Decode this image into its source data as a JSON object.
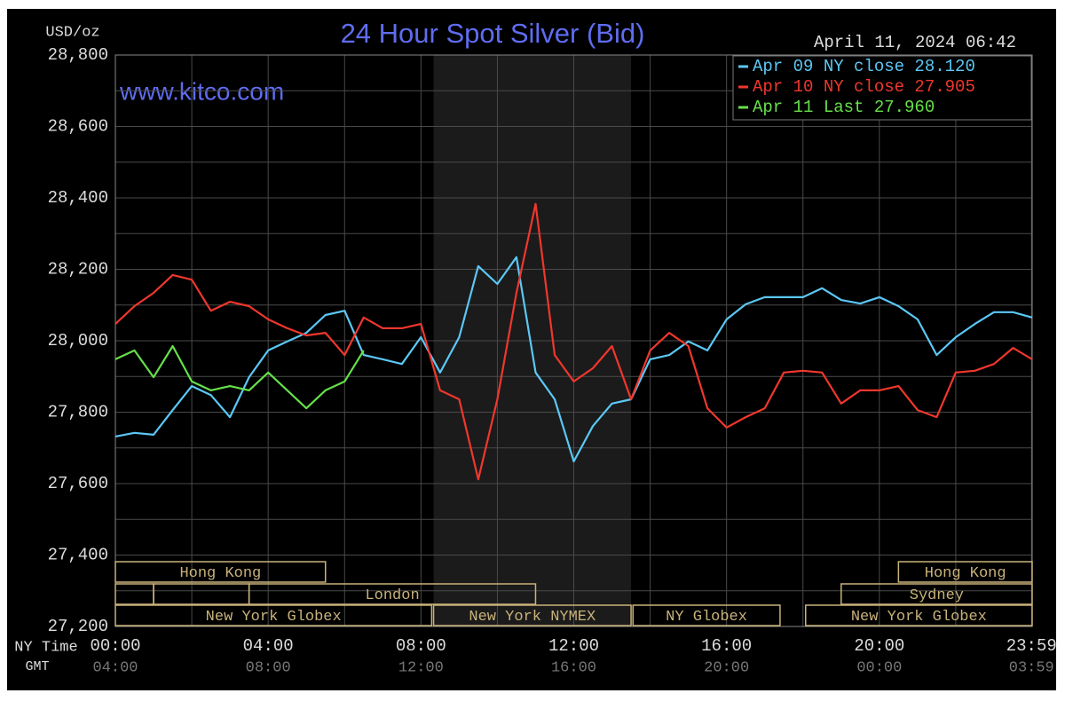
{
  "chart_data": {
    "type": "line",
    "title": "24 Hour Spot Silver (Bid)",
    "timestamp": "April 11, 2024 06:42",
    "watermark": "www.kitco.com",
    "y_unit_label": "USD/oz",
    "x_label": "NY Time",
    "x2_label": "GMT",
    "x": [
      0,
      0.5,
      1,
      1.5,
      2,
      2.5,
      3,
      3.5,
      4,
      4.5,
      5,
      5.5,
      6,
      6.5,
      7,
      7.5,
      8,
      8.5,
      9,
      9.5,
      10,
      10.5,
      11,
      11.5,
      12,
      12.5,
      13,
      13.5,
      14,
      14.5,
      15,
      15.5,
      16,
      16.5,
      17,
      17.5,
      18,
      18.5,
      19,
      19.5,
      20,
      20.5,
      21,
      21.5,
      22,
      22.5,
      23,
      23.5,
      24
    ],
    "xlim": [
      0,
      24
    ],
    "xticks": [
      {
        "value": 0,
        "label": "00:00"
      },
      {
        "value": 4,
        "label": "04:00"
      },
      {
        "value": 8,
        "label": "08:00"
      },
      {
        "value": 12,
        "label": "12:00"
      },
      {
        "value": 16,
        "label": "16:00"
      },
      {
        "value": 20,
        "label": "20:00"
      },
      {
        "value": 23.983,
        "label": "23:59"
      }
    ],
    "x2_tick_labels": [
      "04:00",
      "08:00",
      "12:00",
      "16:00",
      "20:00",
      "00:00",
      "03:59"
    ],
    "x_minor_ticks": [
      2,
      6,
      10,
      14,
      18,
      22
    ],
    "ylim": [
      27200,
      28800
    ],
    "yticks": [
      {
        "value": 27200,
        "label": "27,200"
      },
      {
        "value": 27400,
        "label": "27,400"
      },
      {
        "value": 27600,
        "label": "27,600"
      },
      {
        "value": 27800,
        "label": "27,800"
      },
      {
        "value": 28000,
        "label": "28,000"
      },
      {
        "value": 28200,
        "label": "28,200"
      },
      {
        "value": 28400,
        "label": "28,400"
      },
      {
        "value": 28600,
        "label": "28,600"
      },
      {
        "value": 28800,
        "label": "28,800"
      }
    ],
    "y_minor_ticks": [
      27300,
      27500,
      27700,
      27900,
      28100,
      28300,
      28500,
      28700
    ],
    "grid": true,
    "shaded_range": [
      8.33,
      13.5
    ],
    "legend": "top-right",
    "series": [
      {
        "name": "Apr 09 NY close 28.120",
        "color": "#5bc8f5",
        "values": [
          27732,
          27742,
          27737,
          27806,
          27873,
          27848,
          27786,
          27898,
          27973,
          27998,
          28022,
          28072,
          28084,
          27960,
          27948,
          27935,
          28010,
          27911,
          28010,
          28209,
          28159,
          28234,
          27911,
          27836,
          27662,
          27761,
          27824,
          27836,
          27948,
          27960,
          27998,
          27973,
          28060,
          28102,
          28122,
          28122,
          28122,
          28147,
          28114,
          28104,
          28122,
          28097,
          28060,
          27960,
          28010,
          28047,
          28080,
          28080,
          28065
        ]
      },
      {
        "name": "Apr 10 NY close 27.905",
        "color": "#f0372d",
        "values": [
          28047,
          28097,
          28134,
          28184,
          28171,
          28084,
          28109,
          28097,
          28060,
          28035,
          28015,
          28022,
          27960,
          28065,
          28035,
          28035,
          28047,
          27861,
          27836,
          27612,
          27836,
          28134,
          28383,
          27960,
          27886,
          27923,
          27985,
          27836,
          27973,
          28022,
          27985,
          27811,
          27757,
          27786,
          27811,
          27911,
          27916,
          27911,
          27824,
          27861,
          27861,
          27873,
          27806,
          27786,
          27911,
          27916,
          27935,
          27980,
          27948
        ]
      },
      {
        "name": "Apr 11 Last 27.960",
        "color": "#66e04a",
        "values": [
          27948,
          27973,
          27898,
          27985,
          27886,
          27861,
          27873,
          27861,
          27911,
          27861,
          27811,
          27861,
          27886,
          27973,
          null,
          null,
          null,
          null,
          null,
          null,
          null,
          null,
          null,
          null,
          null,
          null,
          null,
          null,
          null,
          null,
          null,
          null,
          null,
          null,
          null,
          null,
          null,
          null,
          null,
          null,
          null,
          null,
          null,
          null,
          null,
          null,
          null,
          null,
          null
        ]
      }
    ],
    "sessions": [
      {
        "name": "Hong Kong",
        "start": 0,
        "end": 5.5,
        "row": 0
      },
      {
        "name": "Hong Kong",
        "start": 20.5,
        "end": 24,
        "row": 0
      },
      {
        "name": null,
        "start": 0,
        "end": 1,
        "row": 1
      },
      {
        "name": null,
        "start": 1,
        "end": 3.5,
        "row": 1
      },
      {
        "name": "London",
        "start": 3.5,
        "end": 11,
        "row": 1
      },
      {
        "name": "Sydney",
        "start": 19,
        "end": 24,
        "row": 1
      },
      {
        "name": "New York Globex",
        "start": 0,
        "end": 8.28,
        "row": 2
      },
      {
        "name": "New York NYMEX",
        "start": 8.33,
        "end": 13.5,
        "row": 2
      },
      {
        "name": "NY Globex",
        "start": 13.55,
        "end": 17.4,
        "row": 2
      },
      {
        "name": "New York Globex",
        "start": 18.07,
        "end": 24,
        "row": 2
      }
    ]
  }
}
